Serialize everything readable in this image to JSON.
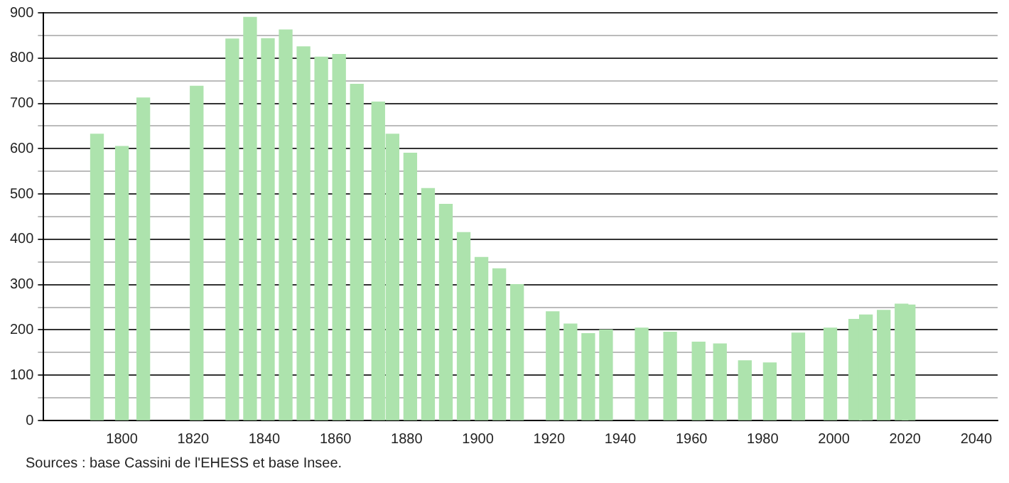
{
  "chart_data": {
    "type": "bar",
    "color": "#ade3ad",
    "x": [
      1793,
      1800,
      1806,
      1821,
      1831,
      1836,
      1841,
      1846,
      1851,
      1856,
      1861,
      1866,
      1872,
      1876,
      1881,
      1886,
      1891,
      1896,
      1901,
      1906,
      1911,
      1921,
      1926,
      1931,
      1936,
      1946,
      1954,
      1962,
      1968,
      1975,
      1982,
      1990,
      1999,
      2006,
      2009,
      2014,
      2019,
      2021
    ],
    "values": [
      632,
      605,
      712,
      738,
      842,
      890,
      843,
      862,
      825,
      802,
      808,
      742,
      703,
      632,
      590,
      512,
      477,
      415,
      360,
      335,
      300,
      240,
      213,
      192,
      200,
      204,
      195,
      173,
      169,
      132,
      127,
      193,
      204,
      223,
      233,
      243,
      257,
      255
    ],
    "xlim": [
      1778,
      2046
    ],
    "xticks": [
      1800,
      1820,
      1840,
      1860,
      1880,
      1900,
      1920,
      1940,
      1960,
      1980,
      2000,
      2020,
      2040
    ],
    "ylim": [
      0,
      900
    ],
    "yticks": [
      0,
      {
        "value": 50,
        "label": null
      },
      100,
      {
        "value": 150,
        "label": null
      },
      200,
      {
        "value": 250,
        "label": null
      },
      300,
      {
        "value": 350,
        "label": null
      },
      400,
      {
        "value": 450,
        "label": null
      },
      500,
      {
        "value": 550,
        "label": null
      },
      600,
      {
        "value": 650,
        "label": null
      },
      700,
      {
        "value": 750,
        "label": null
      },
      800,
      {
        "value": 850,
        "label": null
      },
      900
    ],
    "grid": "y",
    "annotations": [
      "Sources : base Cassini de l'EHESS et base Insee."
    ]
  }
}
